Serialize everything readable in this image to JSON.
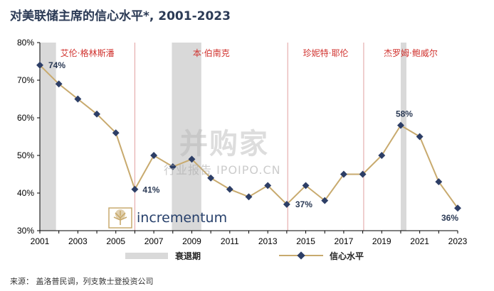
{
  "title": "对美联储主席的信心水平*, 2001-2023",
  "source": "来源： 盖洛普民调，列支敦士登投资公司",
  "watermark": {
    "main": "并购家",
    "sub": "行业报告 IPOIPO.CN"
  },
  "brand": "incrementum",
  "legend": {
    "recession": "衰退期",
    "series": "信心水平"
  },
  "colors": {
    "line": "#c8aa6e",
    "marker": "#2d3e66",
    "recession": "#d9d9d9",
    "divider": "#e2a0a0",
    "chair_label": "#d0312d"
  },
  "chart_data": {
    "type": "line",
    "title": "对美联储主席的信心水平*, 2001-2023",
    "xlabel": "",
    "ylabel": "",
    "x": [
      2001,
      2002,
      2003,
      2004,
      2005,
      2006,
      2007,
      2008,
      2009,
      2010,
      2011,
      2012,
      2013,
      2014,
      2015,
      2016,
      2017,
      2018,
      2019,
      2020,
      2021,
      2022,
      2023
    ],
    "series": [
      {
        "name": "信心水平",
        "values": [
          74,
          69,
          65,
          61,
          56,
          41,
          50,
          47,
          49,
          44,
          41,
          39,
          42,
          37,
          42,
          38,
          45,
          45,
          50,
          58,
          55,
          43,
          36
        ]
      }
    ],
    "xlim": [
      2001,
      2023
    ],
    "ylim": [
      30,
      80
    ],
    "yticks": [
      "30%",
      "40%",
      "50%",
      "60%",
      "70%",
      "80%"
    ],
    "xticks": [
      "2001",
      "2003",
      "2005",
      "2007",
      "2009",
      "2011",
      "2013",
      "2015",
      "2017",
      "2019",
      "2021",
      "2023"
    ],
    "data_labels": [
      {
        "x": 2001,
        "text": "74%"
      },
      {
        "x": 2006,
        "text": "41%"
      },
      {
        "x": 2014,
        "text": "37%"
      },
      {
        "x": 2020,
        "text": "58%"
      },
      {
        "x": 2023,
        "text": "36%"
      }
    ],
    "recessions": [
      [
        2001.0,
        2001.85
      ],
      [
        2007.95,
        2009.5
      ],
      [
        2020.0,
        2020.3
      ]
    ],
    "chair_dividers": [
      2006.0,
      2014.05,
      2018.05
    ],
    "chairs": [
      {
        "name": "艾伦·格林斯潘",
        "from": 2001,
        "to": 2006
      },
      {
        "name": "本·伯南克",
        "from": 2006,
        "to": 2014.05
      },
      {
        "name": "珍妮特·耶伦",
        "from": 2014.05,
        "to": 2018.05
      },
      {
        "name": "杰罗姆·鲍威尔",
        "from": 2018.05,
        "to": 2023
      }
    ],
    "grid": false,
    "legend_position": "bottom"
  }
}
